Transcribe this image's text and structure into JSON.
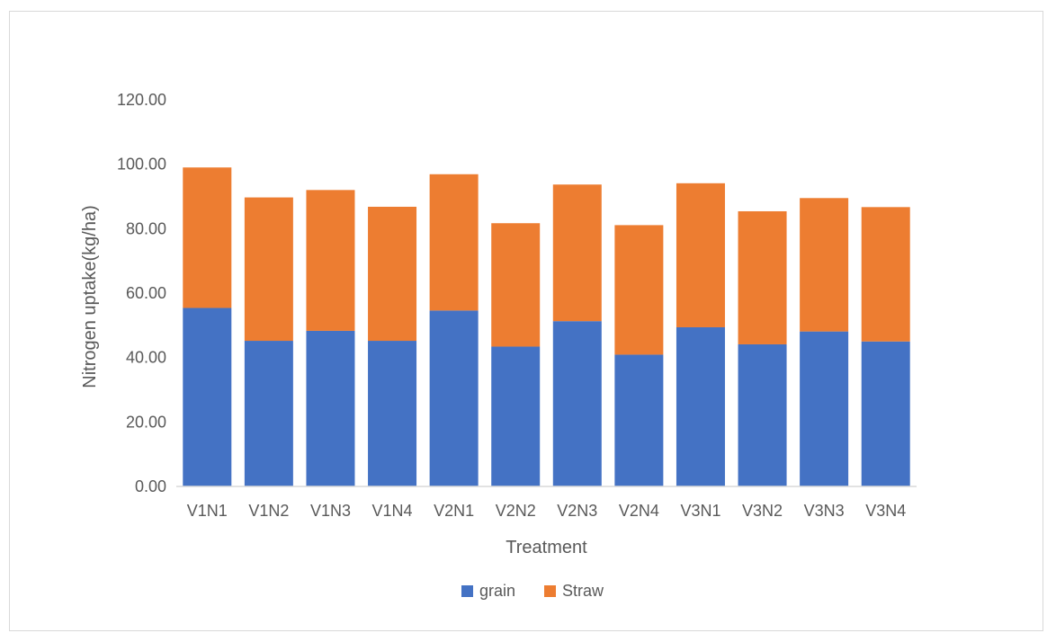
{
  "chart_data": {
    "type": "bar",
    "stacked": true,
    "title": "",
    "xlabel": "Treatment",
    "ylabel": "Nitrogen uptake(kg/ha)",
    "ylim": [
      0,
      120
    ],
    "ytick_values": [
      0,
      20,
      40,
      60,
      80,
      100,
      120
    ],
    "ytick_labels": [
      "0.00",
      "20.00",
      "40.00",
      "60.00",
      "80.00",
      "100.00",
      "120.00"
    ],
    "categories": [
      "V1N1",
      "V1N2",
      "V1N3",
      "V1N4",
      "V2N1",
      "V2N2",
      "V2N3",
      "V2N4",
      "V3N1",
      "V3N2",
      "V3N3",
      "V3N4"
    ],
    "series": [
      {
        "name": "grain",
        "color": "#4472C4",
        "values": [
          55.4,
          45.2,
          48.3,
          45.2,
          54.6,
          43.4,
          51.3,
          40.9,
          49.4,
          44.1,
          48.1,
          45.0
        ]
      },
      {
        "name": "Straw",
        "color": "#ED7D31",
        "values": [
          43.6,
          44.5,
          43.7,
          41.6,
          42.3,
          38.3,
          42.4,
          40.2,
          44.7,
          41.3,
          41.4,
          41.7
        ]
      }
    ],
    "grid": false,
    "legend_position": "bottom"
  }
}
